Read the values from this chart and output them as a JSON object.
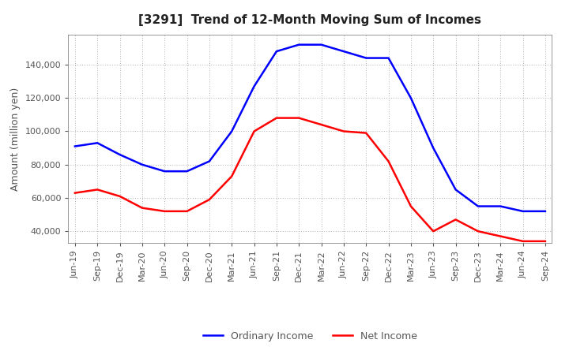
{
  "title": "[3291]  Trend of 12-Month Moving Sum of Incomes",
  "ylabel": "Amount (million yen)",
  "x_labels": [
    "Jun-19",
    "Sep-19",
    "Dec-19",
    "Mar-20",
    "Jun-20",
    "Sep-20",
    "Dec-20",
    "Mar-21",
    "Jun-21",
    "Sep-21",
    "Dec-21",
    "Mar-22",
    "Jun-22",
    "Sep-22",
    "Dec-22",
    "Mar-23",
    "Jun-23",
    "Sep-23",
    "Dec-23",
    "Mar-24",
    "Jun-24",
    "Sep-24"
  ],
  "ordinary_income": [
    91000,
    93000,
    86000,
    80000,
    76000,
    76000,
    82000,
    100000,
    127000,
    148000,
    152000,
    152000,
    148000,
    144000,
    144000,
    120000,
    90000,
    65000,
    55000,
    55000,
    52000,
    52000
  ],
  "net_income": [
    63000,
    65000,
    61000,
    54000,
    52000,
    52000,
    59000,
    73000,
    100000,
    108000,
    108000,
    104000,
    100000,
    99000,
    82000,
    55000,
    40000,
    47000,
    40000,
    37000,
    34000,
    34000
  ],
  "ordinary_color": "#0000ff",
  "net_color": "#ff0000",
  "ylim": [
    33000,
    158000
  ],
  "yticks": [
    40000,
    60000,
    80000,
    100000,
    120000,
    140000
  ],
  "background_color": "#ffffff",
  "grid_color": "#b0b0b0",
  "title_fontsize": 11,
  "axis_label_fontsize": 9,
  "tick_fontsize": 8,
  "legend_fontsize": 9,
  "line_width": 1.8
}
